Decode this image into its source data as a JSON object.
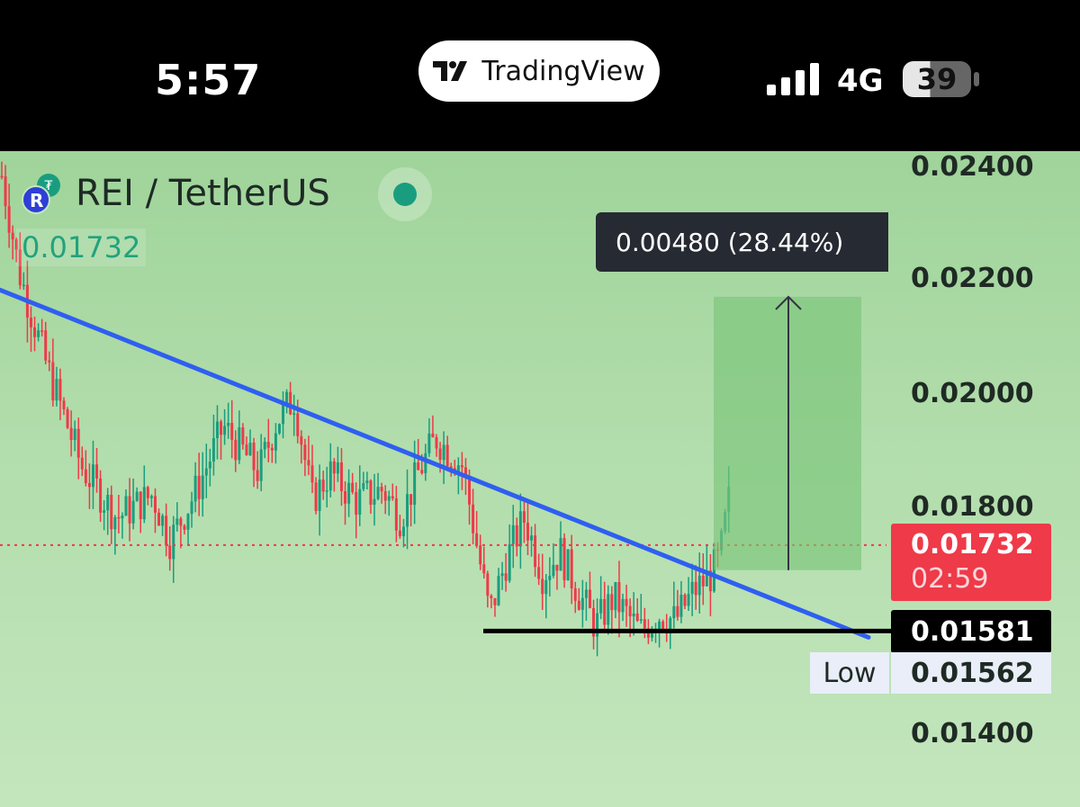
{
  "status_bar": {
    "time": "5:57",
    "app_name": "TradingView",
    "network": "4G",
    "battery": "39"
  },
  "symbol": {
    "name": "REI / TetherUS",
    "last_price": "0.01732",
    "coin_letter": "R"
  },
  "measure": {
    "label": "0.00480 (28.44%)"
  },
  "price_scale": {
    "ticks": [
      "0.02400",
      "0.02200",
      "0.02000",
      "0.01800",
      "0.01400"
    ],
    "current_price": "0.01732",
    "countdown": "02:59",
    "horizontal_line_value": "0.01581",
    "low_label": "Low",
    "low_value": "0.01562"
  },
  "colors": {
    "up": "#1a9d7f",
    "down": "#ee3a49",
    "trendline": "#2f5ff0",
    "measure_fill": "#7bc47a"
  },
  "chart_data": {
    "type": "candlestick",
    "ylim": [
      0.0137,
      0.0243
    ],
    "y_ticks": [
      0.024,
      0.022,
      0.02,
      0.018,
      0.014
    ],
    "current_price": 0.01732,
    "support_level": 0.01581,
    "low": 0.01562,
    "trendline": {
      "start": 0.0218,
      "end": 0.0157
    },
    "measure": {
      "from": 0.01688,
      "to": 0.02168,
      "change": 0.0048,
      "change_pct": 28.44
    },
    "price_path": [
      [
        0,
        0.0238
      ],
      [
        0.02,
        0.0221
      ],
      [
        0.05,
        0.0205
      ],
      [
        0.09,
        0.0187
      ],
      [
        0.13,
        0.0178
      ],
      [
        0.17,
        0.0182
      ],
      [
        0.19,
        0.0174
      ],
      [
        0.22,
        0.0183
      ],
      [
        0.25,
        0.0194
      ],
      [
        0.29,
        0.0186
      ],
      [
        0.31,
        0.0195
      ],
      [
        0.33,
        0.0199
      ],
      [
        0.35,
        0.0181
      ],
      [
        0.37,
        0.0186
      ],
      [
        0.4,
        0.0181
      ],
      [
        0.43,
        0.0183
      ],
      [
        0.45,
        0.0178
      ],
      [
        0.47,
        0.0186
      ],
      [
        0.49,
        0.0192
      ],
      [
        0.52,
        0.0187
      ],
      [
        0.55,
        0.0161
      ],
      [
        0.57,
        0.0171
      ],
      [
        0.59,
        0.0178
      ],
      [
        0.61,
        0.0168
      ],
      [
        0.63,
        0.0172
      ],
      [
        0.65,
        0.0165
      ],
      [
        0.67,
        0.0159
      ],
      [
        0.69,
        0.0164
      ],
      [
        0.72,
        0.0158
      ],
      [
        0.74,
        0.0161
      ],
      [
        0.76,
        0.016
      ],
      [
        0.78,
        0.0165
      ],
      [
        0.8,
        0.0168
      ],
      [
        0.81,
        0.0171
      ],
      [
        0.82,
        0.0181
      ]
    ]
  }
}
